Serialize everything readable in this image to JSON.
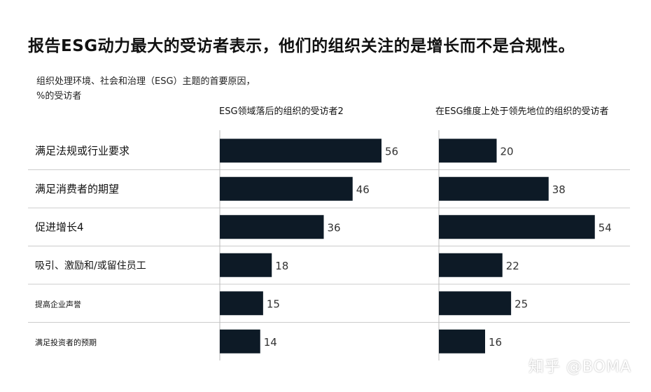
{
  "chart_data": {
    "type": "bar",
    "orientation": "horizontal",
    "title": "报告ESG动力最大的受访者表示，他们的组织关注的是增长而不是合规性。",
    "subtitle_lines": [
      "组织处理环境、社会和治理（ESG）主题的首要原因，",
      "%的受访者"
    ],
    "categories": [
      "满足法规或行业要求",
      "满足消费者的期望",
      "促进增长4",
      "吸引、激励和/或留住员工",
      "提高企业声誉",
      "满足投资者的预期"
    ],
    "series": [
      {
        "name": "ESG领域落后的组织的受访者2",
        "values": [
          56,
          46,
          36,
          18,
          15,
          14
        ]
      },
      {
        "name": "在ESG维度上处于领先地位的组织的受访者",
        "values": [
          20,
          38,
          54,
          22,
          25,
          16
        ]
      }
    ],
    "xlim": [
      0,
      100
    ]
  },
  "colors": {
    "bar": "#0d1a26",
    "divider": "#cccccc",
    "axis": "#bbbbbb",
    "value_text": "#333333"
  },
  "watermark": "知乎 @BOMA"
}
